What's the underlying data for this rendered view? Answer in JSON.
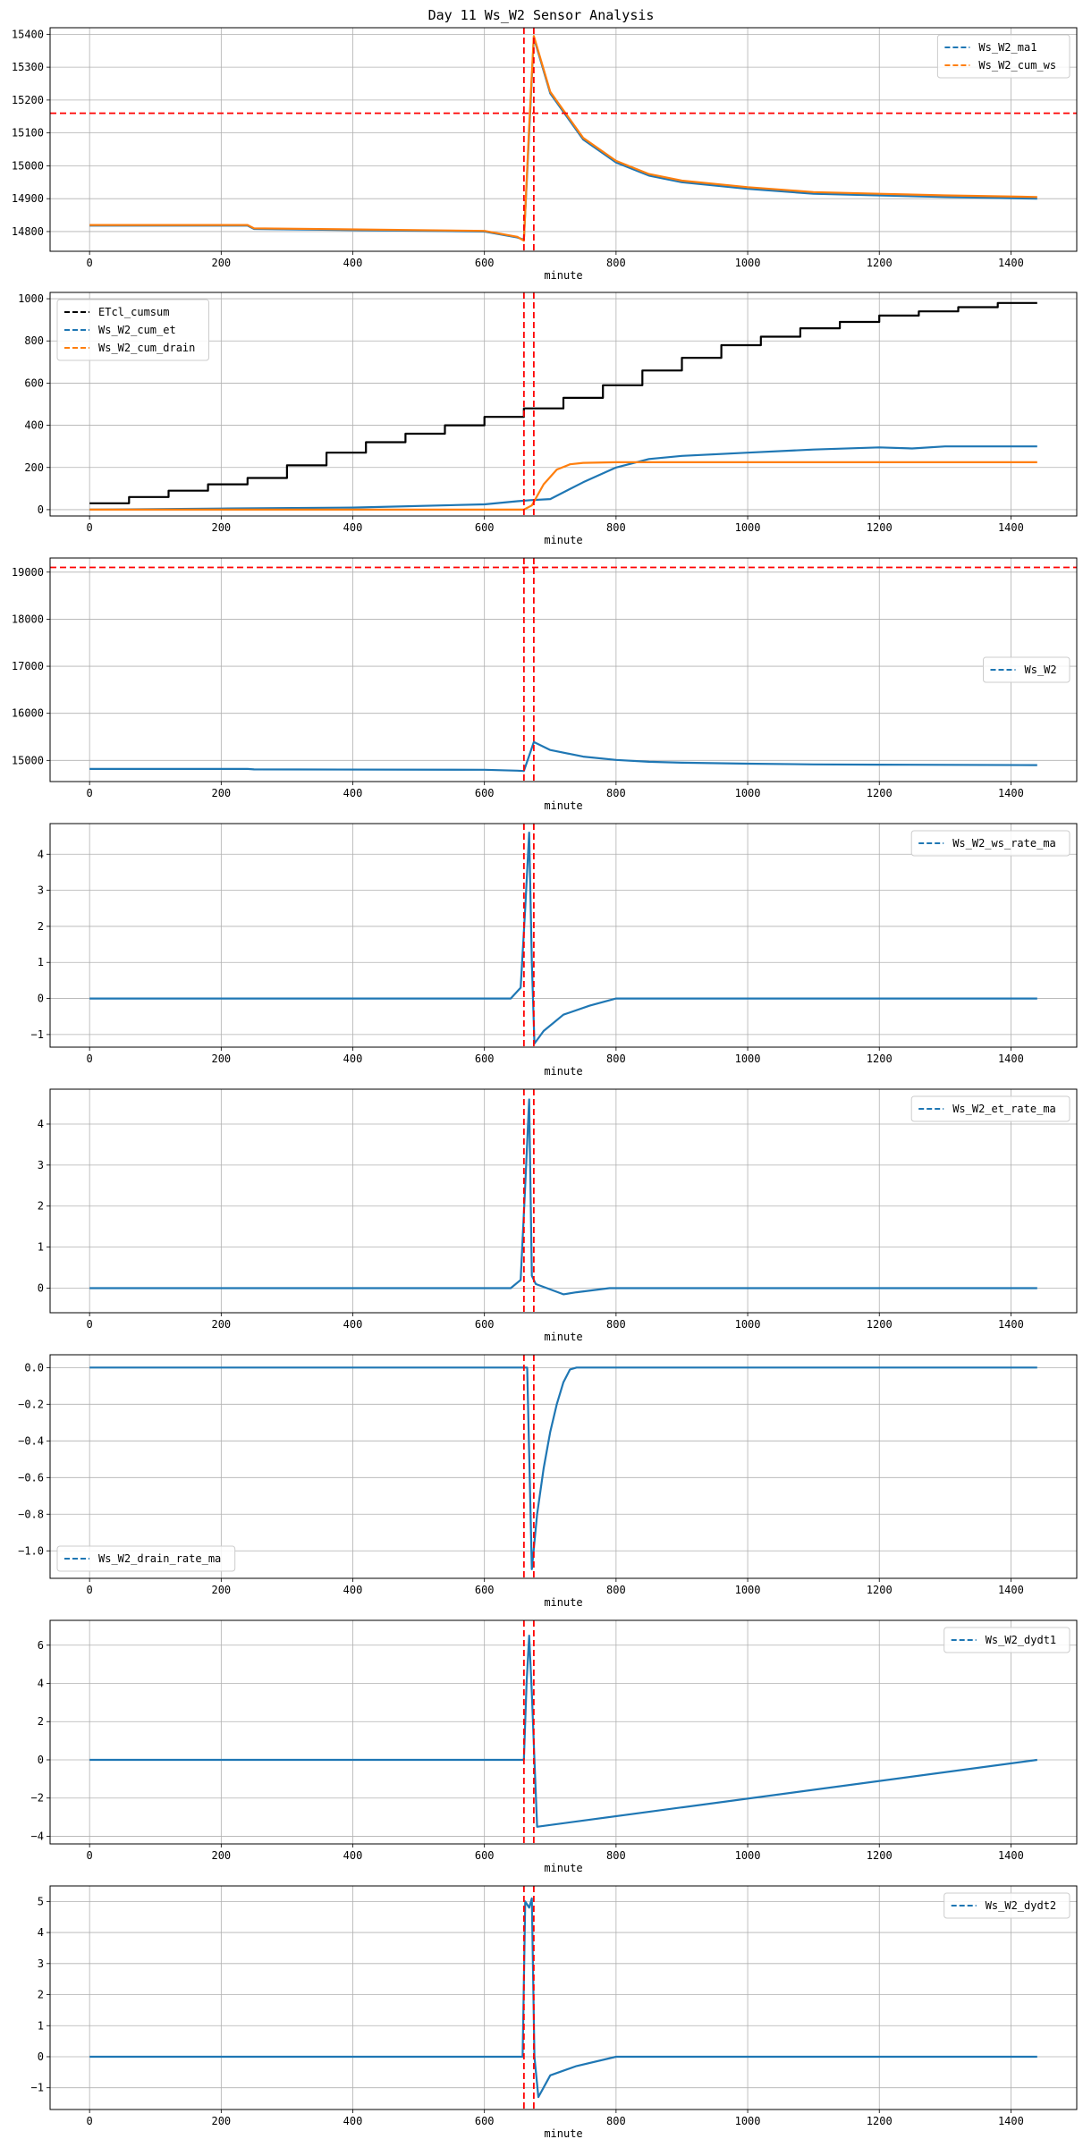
{
  "title": "Day 11 Ws_W2 Sensor Analysis",
  "colors": {
    "blue": "#1f77b4",
    "orange": "#ff7f0e",
    "black": "#000000",
    "red": "#ff0000",
    "grid": "#b0b0b0"
  },
  "chart_data": [
    {
      "type": "line",
      "xlabel": "minute",
      "ylabel": "",
      "xlim": [
        -60,
        1500
      ],
      "ylim": [
        14740,
        15420
      ],
      "xticks": [
        0,
        200,
        400,
        600,
        800,
        1000,
        1200,
        1400
      ],
      "yticks": [
        14800,
        14900,
        15000,
        15100,
        15200,
        15300,
        15400
      ],
      "legend": "top-right",
      "grid": true,
      "vlines": [
        660,
        675
      ],
      "hlines": [
        15160
      ],
      "series": [
        {
          "name": "Ws_W2_ma1",
          "color": "#1f77b4",
          "x": [
            0,
            240,
            250,
            600,
            650,
            660,
            668,
            675,
            700,
            750,
            800,
            850,
            900,
            1000,
            1100,
            1200,
            1300,
            1440
          ],
          "y": [
            14818,
            14818,
            14808,
            14800,
            14782,
            14775,
            15100,
            15390,
            15220,
            15080,
            15010,
            14970,
            14950,
            14930,
            14915,
            14910,
            14905,
            14900
          ]
        },
        {
          "name": "Ws_W2_cum_ws",
          "color": "#ff7f0e",
          "x": [
            0,
            240,
            250,
            600,
            650,
            660,
            668,
            675,
            700,
            750,
            800,
            850,
            900,
            1000,
            1100,
            1200,
            1300,
            1440
          ],
          "y": [
            14820,
            14820,
            14810,
            14802,
            14784,
            14772,
            15120,
            15395,
            15225,
            15085,
            15015,
            14975,
            14955,
            14935,
            14920,
            14915,
            14910,
            14905
          ]
        }
      ]
    },
    {
      "type": "line",
      "xlabel": "minute",
      "ylabel": "",
      "xlim": [
        -60,
        1500
      ],
      "ylim": [
        -30,
        1030
      ],
      "xticks": [
        0,
        200,
        400,
        600,
        800,
        1000,
        1200,
        1400
      ],
      "yticks": [
        0,
        200,
        400,
        600,
        800,
        1000
      ],
      "legend": "top-left",
      "grid": true,
      "vlines": [
        660,
        675
      ],
      "hlines": [],
      "series": [
        {
          "name": "ETcl_cumsum",
          "color": "#000000",
          "step": true,
          "x": [
            0,
            60,
            120,
            180,
            240,
            300,
            360,
            420,
            480,
            540,
            600,
            660,
            720,
            780,
            840,
            900,
            960,
            1020,
            1080,
            1140,
            1200,
            1260,
            1320,
            1380,
            1440
          ],
          "y": [
            30,
            60,
            90,
            120,
            150,
            210,
            270,
            320,
            360,
            400,
            440,
            480,
            530,
            590,
            660,
            720,
            780,
            820,
            860,
            890,
            920,
            940,
            960,
            980,
            980
          ]
        },
        {
          "name": "Ws_W2_cum_et",
          "color": "#1f77b4",
          "x": [
            0,
            200,
            400,
            600,
            650,
            670,
            700,
            750,
            800,
            850,
            900,
            1000,
            1100,
            1200,
            1250,
            1300,
            1440
          ],
          "y": [
            0,
            5,
            10,
            25,
            40,
            45,
            50,
            130,
            200,
            240,
            255,
            270,
            285,
            295,
            290,
            300,
            300
          ]
        },
        {
          "name": "Ws_W2_cum_drain",
          "color": "#ff7f0e",
          "x": [
            0,
            660,
            672,
            690,
            710,
            730,
            750,
            800,
            1000,
            1200,
            1440
          ],
          "y": [
            0,
            0,
            20,
            120,
            190,
            215,
            222,
            225,
            225,
            225,
            225
          ]
        }
      ]
    },
    {
      "type": "line",
      "xlabel": "minute",
      "ylabel": "",
      "xlim": [
        -60,
        1500
      ],
      "ylim": [
        14550,
        19300
      ],
      "xticks": [
        0,
        200,
        400,
        600,
        800,
        1000,
        1200,
        1400
      ],
      "yticks": [
        15000,
        16000,
        17000,
        18000,
        19000
      ],
      "legend": "center-right",
      "grid": true,
      "vlines": [
        660,
        675
      ],
      "hlines": [
        19100
      ],
      "series": [
        {
          "name": "Ws_W2",
          "color": "#1f77b4",
          "x": [
            0,
            240,
            250,
            600,
            650,
            660,
            668,
            675,
            700,
            750,
            800,
            850,
            900,
            1000,
            1100,
            1200,
            1300,
            1440
          ],
          "y": [
            14818,
            14818,
            14808,
            14800,
            14782,
            14775,
            15100,
            15390,
            15220,
            15080,
            15010,
            14970,
            14950,
            14930,
            14915,
            14910,
            14905,
            14900
          ]
        }
      ]
    },
    {
      "type": "line",
      "xlabel": "minute",
      "ylabel": "",
      "xlim": [
        -60,
        1500
      ],
      "ylim": [
        -1.35,
        4.85
      ],
      "xticks": [
        0,
        200,
        400,
        600,
        800,
        1000,
        1200,
        1400
      ],
      "yticks": [
        -1,
        0,
        1,
        2,
        3,
        4
      ],
      "legend": "top-right",
      "grid": true,
      "vlines": [
        660,
        675
      ],
      "hlines": [],
      "series": [
        {
          "name": "Ws_W2_ws_rate_ma",
          "color": "#1f77b4",
          "x": [
            0,
            640,
            655,
            662,
            668,
            672,
            676,
            690,
            720,
            760,
            800,
            1440
          ],
          "y": [
            0,
            0,
            0.3,
            2.5,
            4.6,
            1.0,
            -1.25,
            -0.9,
            -0.45,
            -0.2,
            0,
            0
          ]
        }
      ]
    },
    {
      "type": "line",
      "xlabel": "minute",
      "ylabel": "",
      "xlim": [
        -60,
        1500
      ],
      "ylim": [
        -0.6,
        4.85
      ],
      "xticks": [
        0,
        200,
        400,
        600,
        800,
        1000,
        1200,
        1400
      ],
      "yticks": [
        0,
        1,
        2,
        3,
        4
      ],
      "legend": "top-right",
      "grid": true,
      "vlines": [
        660,
        675
      ],
      "hlines": [],
      "series": [
        {
          "name": "Ws_W2_et_rate_ma",
          "color": "#1f77b4",
          "x": [
            0,
            640,
            655,
            662,
            668,
            672,
            678,
            720,
            740,
            790,
            1440
          ],
          "y": [
            0,
            0,
            0.2,
            2.5,
            4.6,
            0.3,
            0.1,
            -0.15,
            -0.1,
            0,
            0
          ]
        }
      ]
    },
    {
      "type": "line",
      "xlabel": "minute",
      "ylabel": "",
      "xlim": [
        -60,
        1500
      ],
      "ylim": [
        -1.15,
        0.07
      ],
      "xticks": [
        0,
        200,
        400,
        600,
        800,
        1000,
        1200,
        1400
      ],
      "yticks": [
        0.0,
        -0.2,
        -0.4,
        -0.6,
        -0.8,
        -1.0
      ],
      "legend": "bottom-left",
      "grid": true,
      "vlines": [
        660,
        675
      ],
      "hlines": [],
      "series": [
        {
          "name": "Ws_W2_drain_rate_ma",
          "color": "#1f77b4",
          "x": [
            0,
            665,
            672,
            680,
            690,
            700,
            710,
            720,
            730,
            740,
            1440
          ],
          "y": [
            0,
            0,
            -1.1,
            -0.8,
            -0.55,
            -0.35,
            -0.2,
            -0.08,
            -0.01,
            0,
            0
          ]
        }
      ]
    },
    {
      "type": "line",
      "xlabel": "minute",
      "ylabel": "",
      "xlim": [
        -60,
        1500
      ],
      "ylim": [
        -4.4,
        7.3
      ],
      "xticks": [
        0,
        200,
        400,
        600,
        800,
        1000,
        1200,
        1400
      ],
      "yticks": [
        -4,
        -2,
        0,
        2,
        4,
        6
      ],
      "legend": "top-right",
      "grid": true,
      "vlines": [
        660,
        675
      ],
      "hlines": [],
      "series": [
        {
          "name": "Ws_W2_dydt1",
          "color": "#1f77b4",
          "x": [
            0,
            660,
            664,
            668,
            672,
            676,
            680,
            1440
          ],
          "y": [
            0,
            0,
            4.0,
            6.5,
            3.5,
            0,
            -3.5,
            0
          ]
        }
      ]
    },
    {
      "type": "line",
      "xlabel": "minute",
      "ylabel": "",
      "xlim": [
        -60,
        1500
      ],
      "ylim": [
        -1.7,
        5.5
      ],
      "xticks": [
        0,
        200,
        400,
        600,
        800,
        1000,
        1200,
        1400
      ],
      "yticks": [
        -1,
        0,
        1,
        2,
        3,
        4,
        5
      ],
      "legend": "top-right",
      "grid": true,
      "vlines": [
        660,
        675
      ],
      "hlines": [],
      "series": [
        {
          "name": "Ws_W2_dydt2",
          "color": "#1f77b4",
          "x": [
            0,
            658,
            662,
            668,
            672,
            676,
            682,
            700,
            740,
            800,
            1440
          ],
          "y": [
            0,
            0,
            5.0,
            4.8,
            5.1,
            0,
            -1.3,
            -0.6,
            -0.3,
            0,
            0
          ]
        }
      ]
    }
  ]
}
